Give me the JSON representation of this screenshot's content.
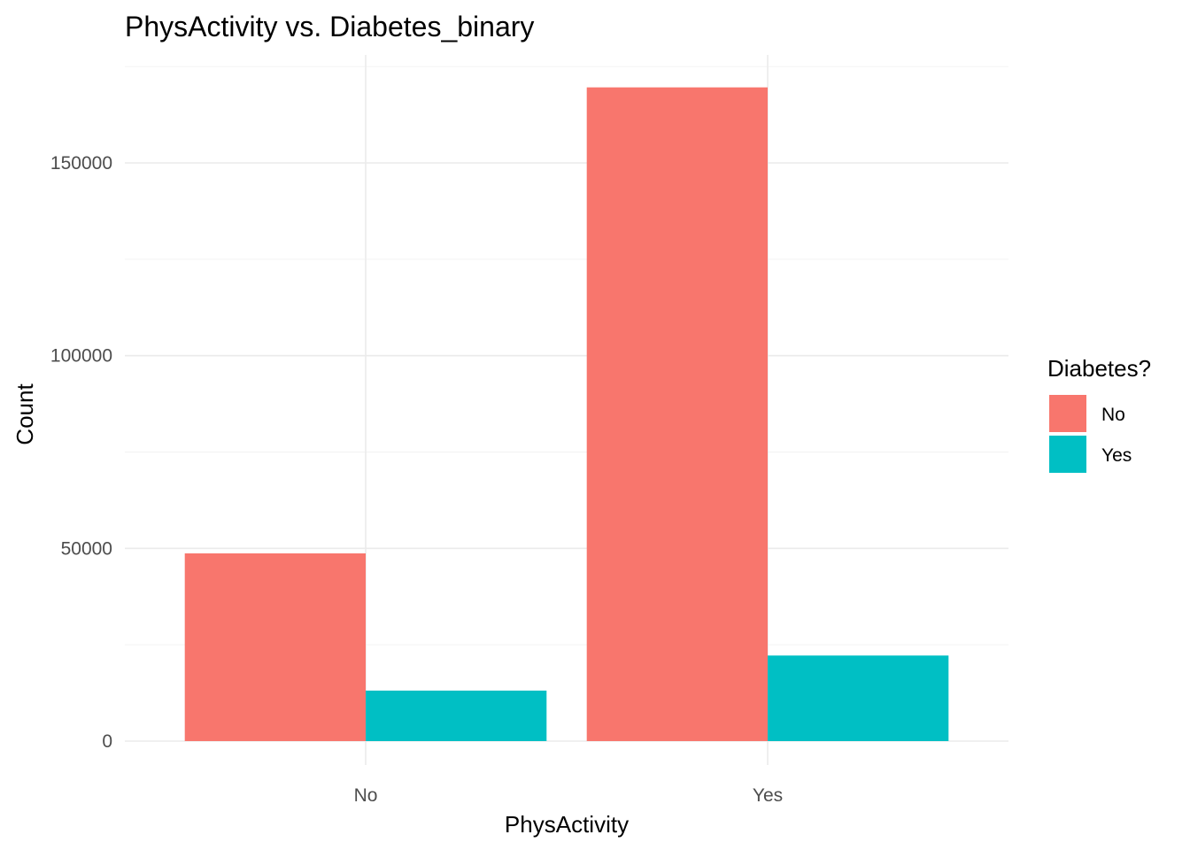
{
  "chart_data": {
    "type": "bar",
    "title": "PhysActivity vs. Diabetes_binary",
    "xlabel": "PhysActivity",
    "ylabel": "Count",
    "categories": [
      "No",
      "Yes"
    ],
    "series": [
      {
        "name": "No",
        "color": "#F8766D",
        "values": [
          48700,
          169600
        ]
      },
      {
        "name": "Yes",
        "color": "#00BFC4",
        "values": [
          13100,
          22200
        ]
      }
    ],
    "ylim": [
      0,
      175000
    ],
    "yticks": [
      0,
      50000,
      100000,
      150000
    ],
    "ytick_labels": [
      "0",
      "50000",
      "100000",
      "150000"
    ],
    "legend": {
      "title": "Diabetes?",
      "position": "right"
    },
    "grid": true
  }
}
